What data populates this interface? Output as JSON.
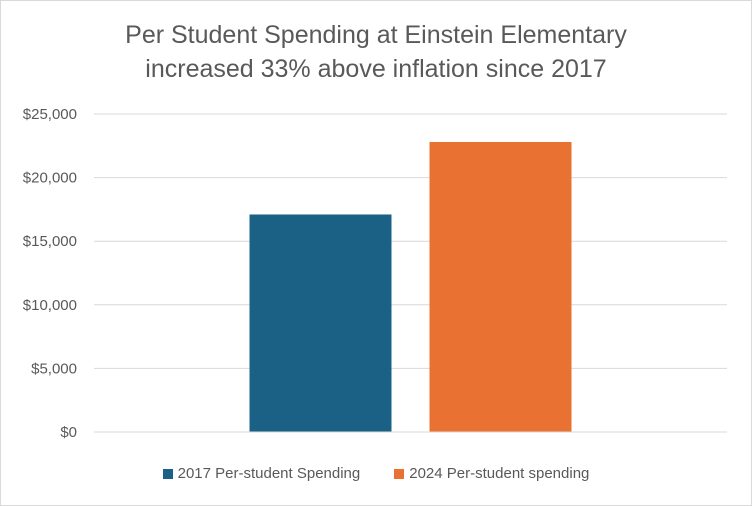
{
  "chart_data": {
    "type": "bar",
    "title": "Per Student Spending at Einstein Elementary increased 33% above inflation since 2017",
    "title_lines": [
      "Per Student Spending at Einstein Elementary",
      "increased 33% above inflation since 2017"
    ],
    "xlabel": "",
    "ylabel": "",
    "ylim": [
      0,
      25000
    ],
    "y_ticks": [
      0,
      5000,
      10000,
      15000,
      20000,
      25000
    ],
    "y_tick_labels": [
      "$0",
      "$5,000",
      "$10,000",
      "$15,000",
      "$20,000",
      "$25,000"
    ],
    "grid": true,
    "legend_position": "bottom",
    "series": [
      {
        "name": "2017 Per-student Spending",
        "values": [
          17100
        ],
        "color": "#1b6186"
      },
      {
        "name": "2024 Per-student spending",
        "values": [
          22800
        ],
        "color": "#e97132"
      }
    ]
  }
}
